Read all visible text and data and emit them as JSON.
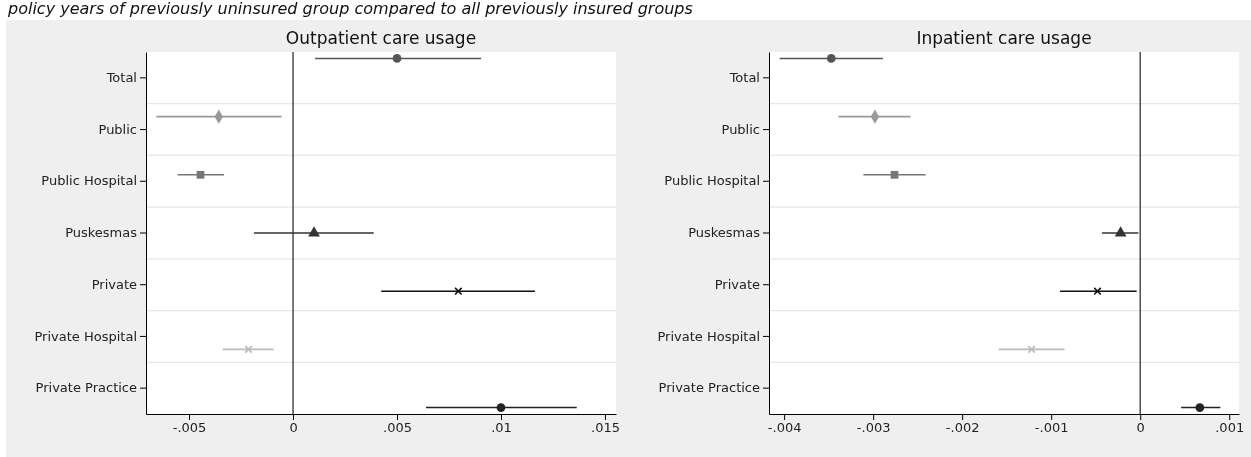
{
  "chart_data": [
    {
      "type": "scatter",
      "orientation": "horizontal",
      "title": "Outpatient care usage",
      "annotations": [
        "policy years of previously uninsured group compared to all previously insured groups"
      ],
      "categories": [
        "Total",
        "Public",
        "Public Hospital",
        "Puskesmas",
        "Private",
        "Private Hospital",
        "Private Practice"
      ],
      "xlim": [
        -0.00707,
        0.01553
      ],
      "xticks": [
        {
          "value": -0.005,
          "label": "-.005"
        },
        0,
        {
          "value": 0.005,
          "label": ".005"
        },
        {
          "value": 0.01,
          "label": ".01"
        },
        {
          "value": 0.015,
          "label": ".015"
        }
      ],
      "ref_lines": [
        {
          "axis": "x",
          "value": 0,
          "color": "#333333"
        }
      ],
      "grid": true,
      "series": [
        {
          "color": "#555555",
          "marker": "circle",
          "values": [
            0.005,
            null,
            null,
            null,
            null,
            null,
            null
          ],
          "errors": [
            [
              0.00106,
              0.00904
            ],
            null,
            null,
            null,
            null,
            null,
            null
          ]
        },
        {
          "color": "#999999",
          "marker": "diamond",
          "values": [
            null,
            -0.00357,
            null,
            null,
            null,
            null,
            null
          ],
          "errors": [
            null,
            [
              -0.00657,
              -0.00055
            ],
            null,
            null,
            null,
            null,
            null
          ]
        },
        {
          "color": "#777777",
          "marker": "square",
          "values": [
            null,
            null,
            -0.00445,
            null,
            null,
            null,
            null
          ],
          "errors": [
            null,
            null,
            [
              -0.00555,
              -0.00332
            ],
            null,
            null,
            null,
            null
          ]
        },
        {
          "color": "#333333",
          "marker": "triangle",
          "values": [
            null,
            null,
            null,
            0.00101,
            null,
            null,
            null
          ],
          "errors": [
            null,
            null,
            null,
            [
              -0.00188,
              0.00388
            ],
            null,
            null,
            null
          ]
        },
        {
          "color": "#111111",
          "marker": "cross",
          "values": [
            null,
            null,
            null,
            null,
            0.00795,
            null,
            null
          ],
          "errors": [
            null,
            null,
            null,
            null,
            [
              0.00424,
              0.01163
            ],
            null,
            null
          ]
        },
        {
          "color": "#bbbbbb",
          "marker": "cross",
          "values": [
            null,
            null,
            null,
            null,
            null,
            -0.00214,
            null
          ],
          "errors": [
            null,
            null,
            null,
            null,
            null,
            [
              -0.00338,
              -0.00093
            ],
            null
          ]
        },
        {
          "color": "#222222",
          "marker": "circle",
          "values": [
            null,
            null,
            null,
            null,
            null,
            null,
            0.01
          ],
          "errors": [
            null,
            null,
            null,
            null,
            null,
            null,
            [
              0.00639,
              0.01364
            ]
          ]
        }
      ]
    },
    {
      "type": "scatter",
      "orientation": "horizontal",
      "title": "Inpatient care usage",
      "categories": [
        "Total",
        "Public",
        "Public Hospital",
        "Puskesmas",
        "Private",
        "Private Hospital",
        "Private Practice"
      ],
      "xlim": [
        -0.00417,
        0.00111
      ],
      "xticks": [
        {
          "value": -0.004,
          "label": "-.004"
        },
        {
          "value": -0.003,
          "label": "-.003"
        },
        {
          "value": -0.002,
          "label": "-.002"
        },
        {
          "value": -0.001,
          "label": "-.001"
        },
        0,
        {
          "value": 0.001,
          "label": ".001"
        }
      ],
      "ref_lines": [
        {
          "axis": "x",
          "value": 0,
          "color": "#333333"
        }
      ],
      "grid": true,
      "series": [
        {
          "color": "#555555",
          "marker": "circle",
          "values": [
            -0.00347,
            null,
            null,
            null,
            null,
            null,
            null
          ],
          "errors": [
            [
              -0.00405,
              -0.00289
            ],
            null,
            null,
            null,
            null,
            null,
            null
          ]
        },
        {
          "color": "#999999",
          "marker": "diamond",
          "values": [
            null,
            -0.00298,
            null,
            null,
            null,
            null,
            null
          ],
          "errors": [
            null,
            [
              -0.00339,
              -0.00258
            ],
            null,
            null,
            null,
            null,
            null
          ]
        },
        {
          "color": "#777777",
          "marker": "square",
          "values": [
            null,
            null,
            -0.00276,
            null,
            null,
            null,
            null
          ],
          "errors": [
            null,
            null,
            [
              -0.00311,
              -0.00241
            ],
            null,
            null,
            null,
            null
          ]
        },
        {
          "color": "#333333",
          "marker": "triangle",
          "values": [
            null,
            null,
            null,
            -0.00022,
            null,
            null,
            null
          ],
          "errors": [
            null,
            null,
            null,
            [
              -0.00043,
              -2e-05
            ],
            null,
            null,
            null
          ]
        },
        {
          "color": "#111111",
          "marker": "cross",
          "values": [
            null,
            null,
            null,
            null,
            -0.00048,
            null,
            null
          ],
          "errors": [
            null,
            null,
            null,
            null,
            [
              -0.0009,
              -4e-05
            ],
            null,
            null
          ]
        },
        {
          "color": "#bbbbbb",
          "marker": "cross",
          "values": [
            null,
            null,
            null,
            null,
            null,
            -0.00122,
            null
          ],
          "errors": [
            null,
            null,
            null,
            null,
            null,
            [
              -0.00159,
              -0.00085
            ],
            null
          ]
        },
        {
          "color": "#222222",
          "marker": "circle",
          "values": [
            null,
            null,
            null,
            null,
            null,
            null,
            0.00067
          ],
          "errors": [
            null,
            null,
            null,
            null,
            null,
            null,
            [
              0.00046,
              0.0009
            ]
          ]
        }
      ]
    }
  ]
}
